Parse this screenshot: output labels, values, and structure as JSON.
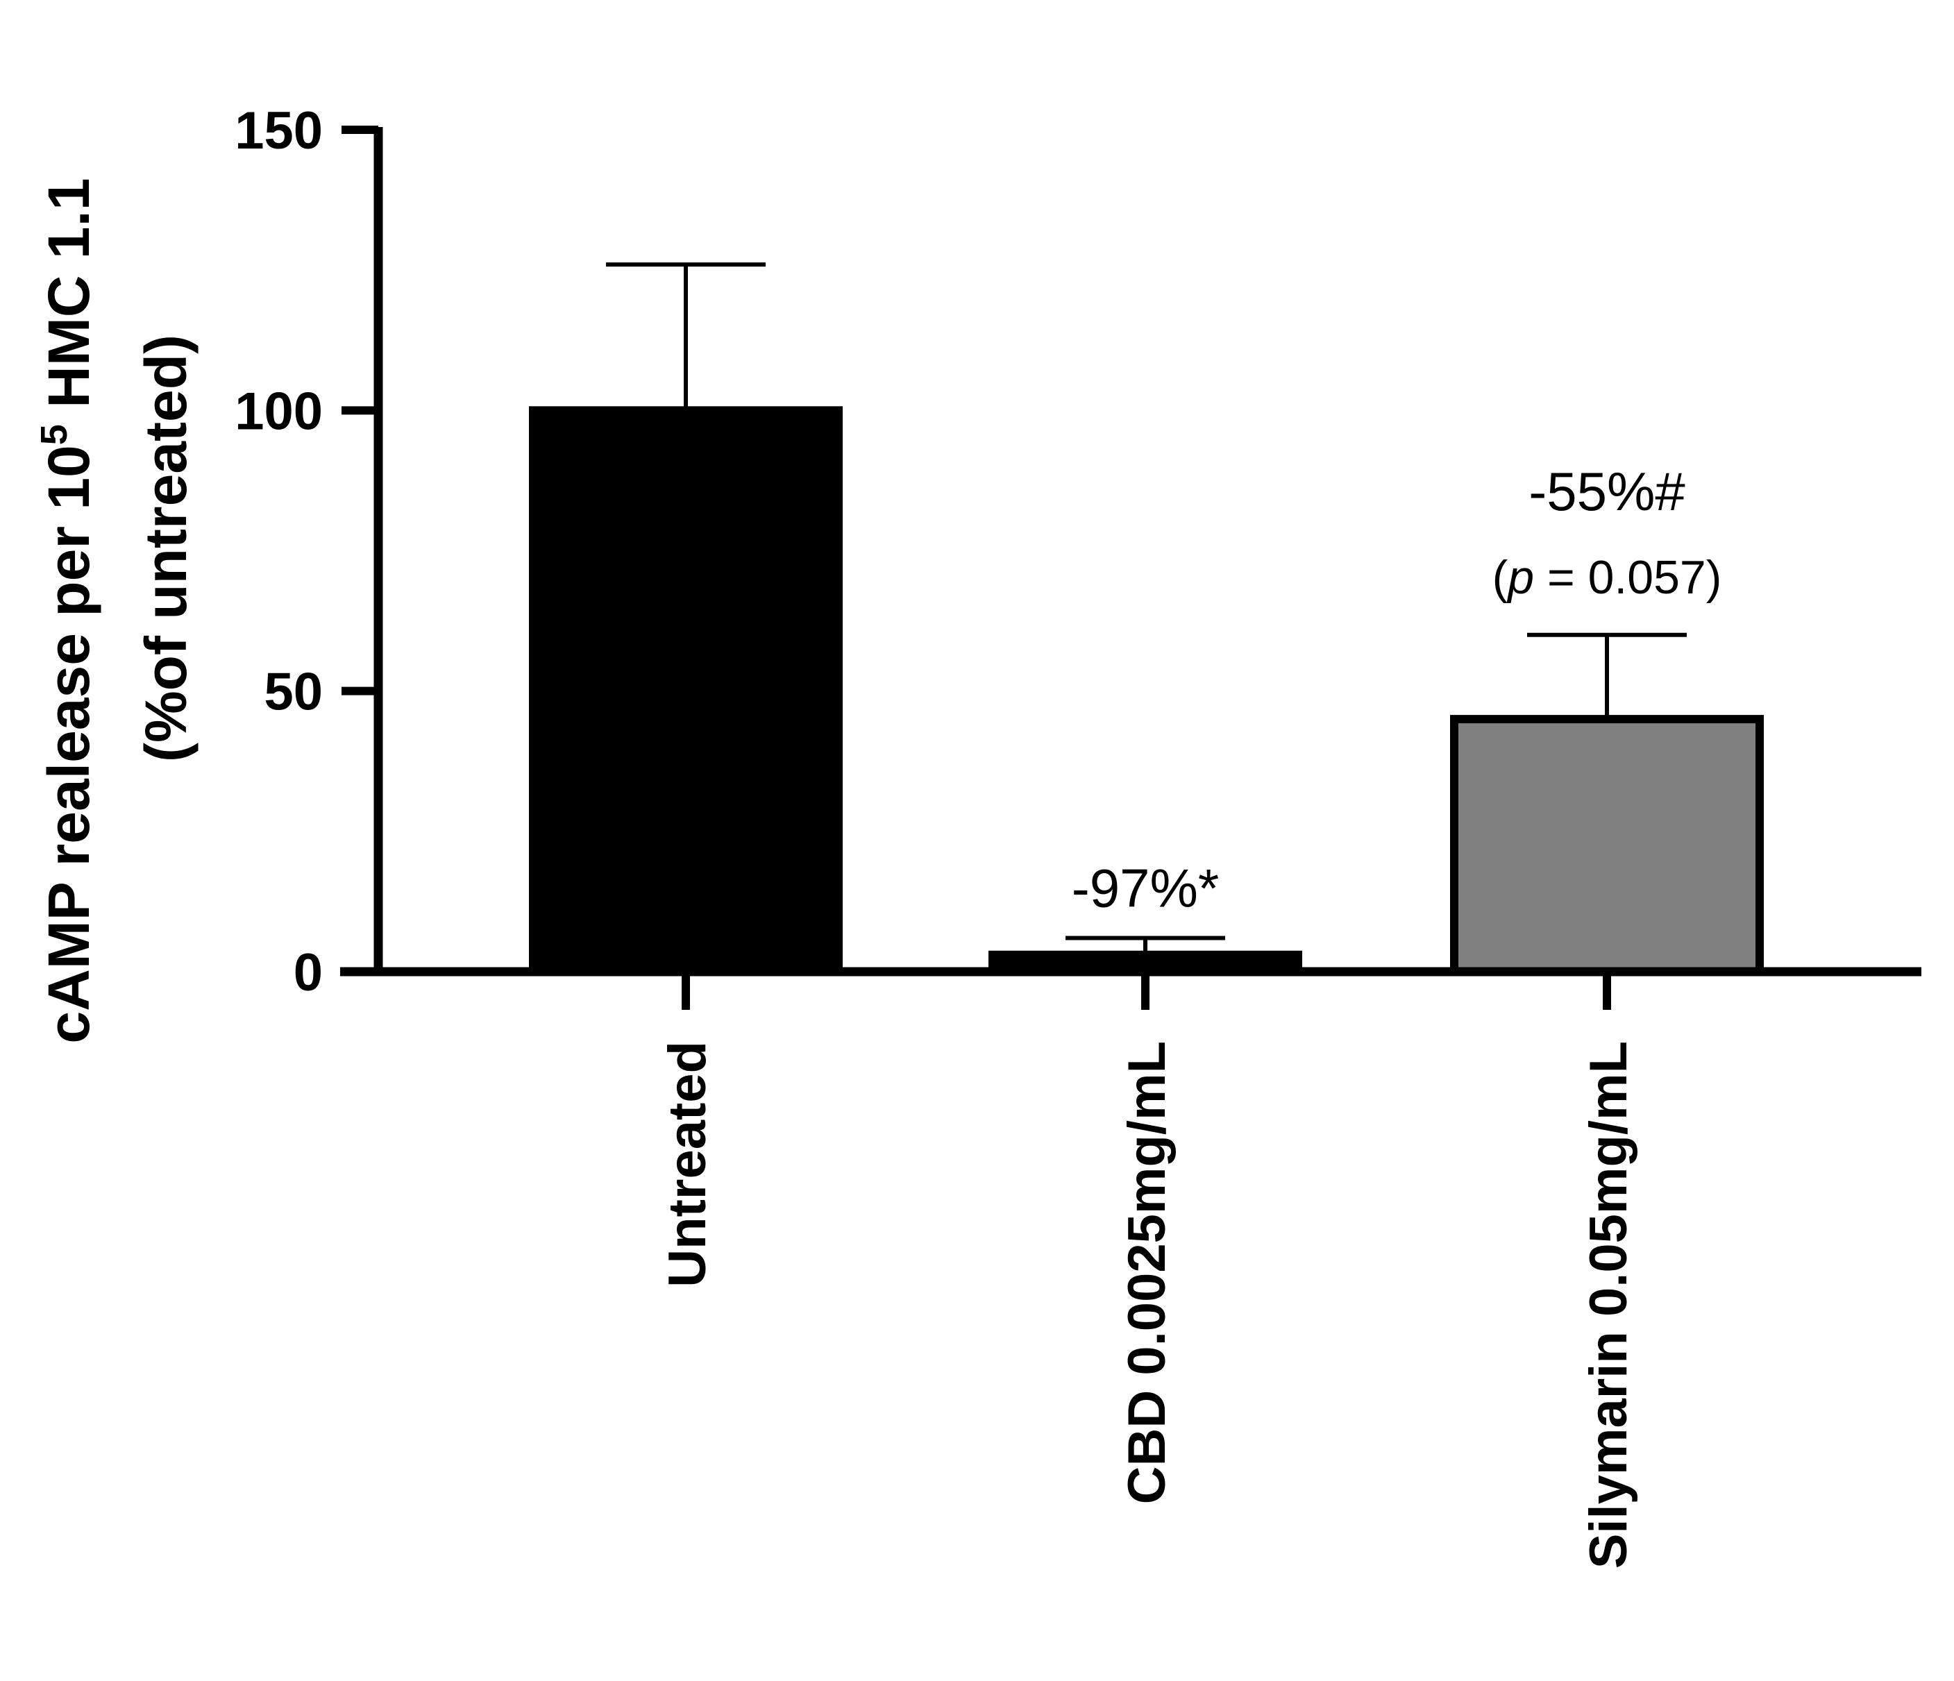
{
  "chart_data": {
    "type": "bar",
    "categories": [
      "Untreated",
      "CBD 0.0025mg/mL",
      "Silymarin 0.05mg/mL"
    ],
    "values": [
      100,
      3,
      45
    ],
    "errors": [
      26,
      3,
      15
    ],
    "colors": [
      "#000000",
      "#000000",
      "#808080"
    ],
    "ylabel_line1_pre": "cAMP realease per 10",
    "ylabel_line1_sup": "5",
    "ylabel_line1_post": " HMC 1.1",
    "ylabel_line2": "(%of untreated)",
    "ylim": [
      0,
      150
    ],
    "yticks": [
      "0",
      "50",
      "100",
      "150"
    ],
    "annotations": [
      {
        "category": 1,
        "text": "-97%*"
      },
      {
        "category": 2,
        "text": "-55%#",
        "p_prefix": "(",
        "p_symbol": "p",
        "p_rest": " = 0.057)"
      }
    ],
    "grid": false
  }
}
